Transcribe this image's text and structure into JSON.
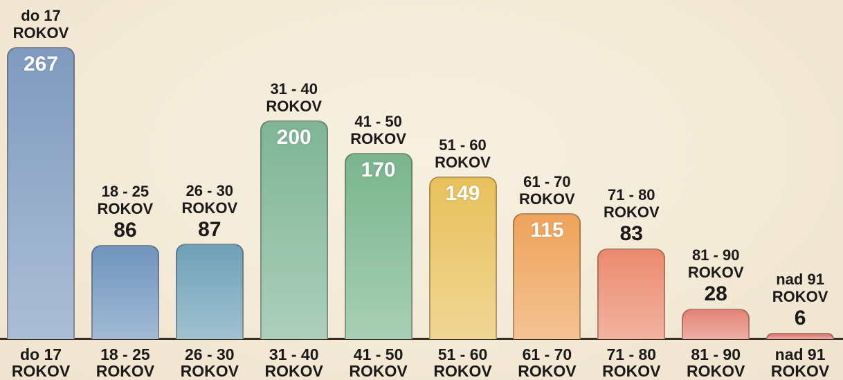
{
  "chart_data": {
    "type": "bar",
    "categories": [
      "do 17 ROKOV",
      "18 - 25 ROKOV",
      "26 - 30 ROKOV",
      "31 - 40 ROKOV",
      "41 - 50 ROKOV",
      "51 - 60 ROKOV",
      "61 - 70 ROKOV",
      "71 - 80 ROKOV",
      "81 - 90 ROKOV",
      "nad 91 ROKOV"
    ],
    "values": [
      267,
      86,
      87,
      200,
      170,
      149,
      115,
      83,
      28,
      6
    ],
    "colors": [
      "#7f9bbf",
      "#7095be",
      "#6fa1b8",
      "#80b597",
      "#7ab58e",
      "#e8c15c",
      "#eea35a",
      "#eb8a6e",
      "#e48476",
      "#de7a6f"
    ]
  }
}
